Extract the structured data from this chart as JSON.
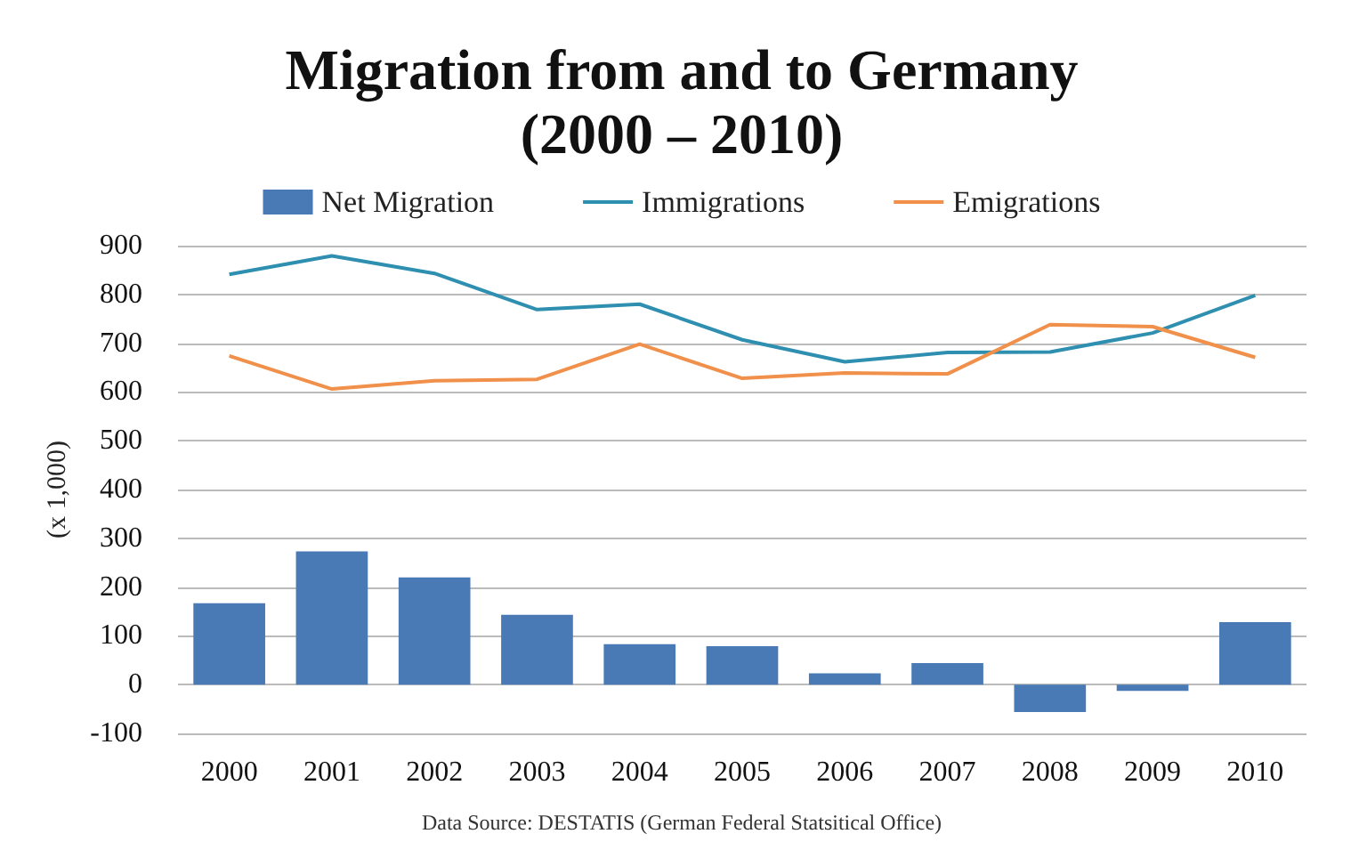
{
  "chart_data": {
    "type": "bar",
    "title": "Migration from and to Germany\n(2000 – 2010)",
    "ylabel": "(x 1,000)",
    "categories": [
      "2000",
      "2001",
      "2002",
      "2003",
      "2004",
      "2005",
      "2006",
      "2007",
      "2008",
      "2009",
      "2010"
    ],
    "series": [
      {
        "name": "Net Migration",
        "color": "#4a7ab5",
        "values": [
          167,
          273,
          220,
          143,
          83,
          79,
          23,
          44,
          -56,
          -13,
          128
        ]
      },
      {
        "name": "Immigrations",
        "type": "line",
        "color": "#2e8fb0",
        "values": [
          841,
          879,
          843,
          769,
          780,
          707,
          662,
          681,
          682,
          721,
          798
        ]
      },
      {
        "name": "Emigrations",
        "type": "line",
        "color": "#f0904a",
        "values": [
          674,
          606,
          623,
          626,
          698,
          628,
          639,
          637,
          738,
          734,
          671
        ]
      }
    ],
    "ylim": [
      -100,
      900
    ],
    "yticks": [
      -100,
      0,
      100,
      200,
      300,
      400,
      500,
      600,
      700,
      800,
      900
    ],
    "grid": "y",
    "legend": "top",
    "marker": "none",
    "annotations": [
      "Data Source: DESTATIS (German Federal Statsitical Office)"
    ]
  }
}
